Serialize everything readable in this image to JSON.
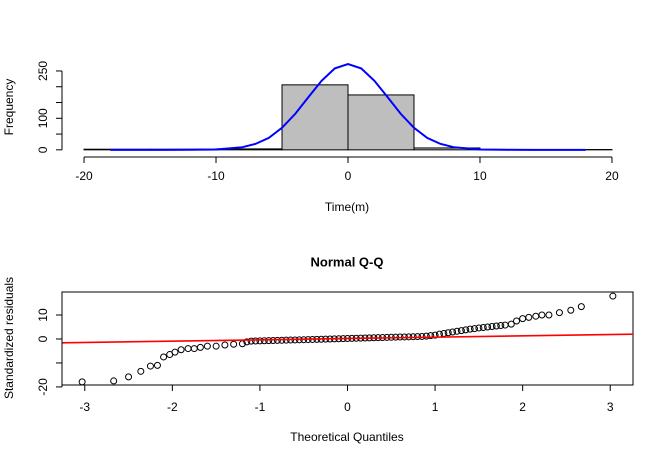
{
  "chart_data": [
    {
      "type": "histogram",
      "xlabel": "Time(m)",
      "ylabel": "Frequency",
      "bins": [
        -20,
        -15,
        -10,
        -5,
        0,
        5,
        10,
        15,
        20
      ],
      "counts": [
        2,
        2,
        3,
        206,
        174,
        6,
        1,
        1
      ],
      "color": "#bebebe",
      "curve": {
        "color": "#0000ff",
        "x": [
          -18,
          -16,
          -14,
          -12,
          -10,
          -8,
          -7,
          -6,
          -5,
          -4,
          -3,
          -2,
          -1,
          0,
          1,
          2,
          3,
          4,
          5,
          6,
          7,
          8,
          10,
          12,
          14,
          16,
          18
        ],
        "y": [
          0,
          0,
          0,
          0.1,
          1.2,
          8.4,
          19,
          38,
          70,
          114,
          167,
          219,
          258,
          272,
          258,
          219,
          167,
          114,
          70,
          38,
          19,
          8.4,
          1.2,
          0.1,
          0,
          0,
          0
        ]
      },
      "xlim": [
        -21.67,
        21.67
      ],
      "ylim": [
        -10,
        280
      ],
      "xticks": [
        -20,
        -10,
        0,
        10,
        20
      ],
      "yticks": [
        0,
        100,
        250
      ],
      "yticks_unlabeled": [
        50,
        150,
        200
      ]
    },
    {
      "type": "qq",
      "title": "Normal Q-Q",
      "xlabel": "Theoretical Quantiles",
      "ylabel": "Standardized residuals",
      "x": [
        -3.03,
        -2.67,
        -2.5,
        -2.36,
        -2.25,
        -2.17,
        -2.1,
        -2.03,
        -1.97,
        -1.9,
        -1.82,
        -1.75,
        -1.68,
        -1.6,
        -1.5,
        -1.4,
        -1.3,
        -1.2,
        -1.15,
        -1.1,
        -1.05,
        -1.0,
        -0.95,
        -0.9,
        -0.85,
        -0.8,
        -0.75,
        -0.7,
        -0.65,
        -0.6,
        -0.55,
        -0.5,
        -0.45,
        -0.4,
        -0.35,
        -0.3,
        -0.25,
        -0.2,
        -0.15,
        -0.1,
        -0.05,
        0,
        0.05,
        0.1,
        0.15,
        0.2,
        0.25,
        0.3,
        0.35,
        0.4,
        0.45,
        0.5,
        0.55,
        0.6,
        0.65,
        0.7,
        0.75,
        0.8,
        0.85,
        0.9,
        0.95,
        1.0,
        1.05,
        1.1,
        1.15,
        1.2,
        1.25,
        1.3,
        1.35,
        1.4,
        1.45,
        1.5,
        1.55,
        1.6,
        1.65,
        1.7,
        1.75,
        1.8,
        1.87,
        1.93,
        2.0,
        2.07,
        2.15,
        2.22,
        2.3,
        2.42,
        2.55,
        2.67,
        3.03
      ],
      "y": [
        -17.9,
        -17.5,
        -15.8,
        -13.5,
        -11.3,
        -11,
        -7.5,
        -6.5,
        -5.5,
        -4.5,
        -4,
        -4,
        -3.5,
        -3,
        -3,
        -2.5,
        -2.2,
        -2,
        -1.2,
        -0.9,
        -0.85,
        -0.8,
        -0.75,
        -0.7,
        -0.65,
        -0.6,
        -0.55,
        -0.5,
        -0.45,
        -0.4,
        -0.35,
        -0.3,
        -0.25,
        -0.2,
        -0.15,
        -0.1,
        -0.05,
        0,
        0.05,
        0.1,
        0.15,
        0.2,
        0.25,
        0.3,
        0.35,
        0.4,
        0.45,
        0.5,
        0.55,
        0.6,
        0.65,
        0.7,
        0.75,
        0.8,
        0.85,
        0.9,
        0.95,
        1.0,
        1.05,
        1.2,
        1.4,
        1.6,
        2,
        2.3,
        2.6,
        2.9,
        3.2,
        3.5,
        3.8,
        4.1,
        4.3,
        4.6,
        4.8,
        5,
        5.2,
        5.4,
        5.6,
        5.8,
        6.2,
        7.5,
        8.5,
        9,
        9.5,
        10,
        10,
        11,
        12,
        13.5,
        17.9
      ],
      "point_color": "#000000",
      "qqline": {
        "intercept": 0.2,
        "slope": 0.55,
        "color": "#ff0000"
      },
      "xlim": [
        -3.26,
        3.26
      ],
      "ylim": [
        -19.2,
        19.6
      ],
      "xticks": [
        -3,
        -2,
        -1,
        0,
        1,
        2,
        3
      ],
      "yticks": [
        -20,
        0,
        10
      ],
      "yticks_unlabeled": [
        -10
      ]
    }
  ]
}
